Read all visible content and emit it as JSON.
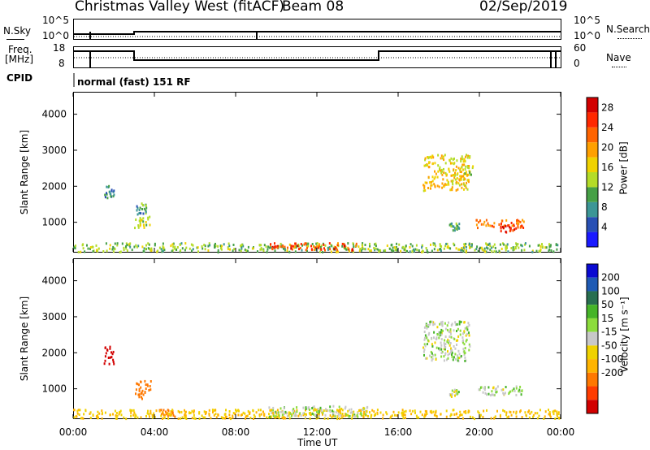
{
  "header": {
    "station": "Christmas Valley West (fitACF)",
    "beam": "Beam 08",
    "date": "02/Sep/2019"
  },
  "summary_panels": {
    "nsky": {
      "label": "N.Sky",
      "ticks": [
        "10^5",
        "10^0"
      ]
    },
    "nsearch": {
      "label": "N.Search",
      "ticks": [
        "10^5",
        "10^0"
      ]
    },
    "freq": {
      "label_line1": "Freq.",
      "label_line2": "[MHz]",
      "ticks": [
        "18",
        "8"
      ]
    },
    "nave": {
      "label": "Nave",
      "ticks": [
        "60",
        "0"
      ]
    },
    "cpid": {
      "label": "CPID",
      "program": "normal (fast) 151 RF"
    }
  },
  "colors": {
    "power_scale": [
      "#1a1aff",
      "#2850b4",
      "#3c9696",
      "#46a046",
      "#b4dc28",
      "#f0d200",
      "#ffa000",
      "#ff6400",
      "#ff2800",
      "#d20000"
    ],
    "velocity_scale": [
      "#0a0ad2",
      "#1e5ab4",
      "#286e50",
      "#46b428",
      "#8cdc3c",
      "#c8c8c8",
      "#f0d200",
      "#ffb400",
      "#ff7800",
      "#ff3c00",
      "#d20000"
    ],
    "ground_scatter": "#c8c8c8"
  },
  "chart_data": [
    {
      "type": "heatmap",
      "parameter": "Power",
      "xlabel": "",
      "ylabel": "Slant Range [km]",
      "x_ticks": [
        "00:00",
        "04:00",
        "08:00",
        "12:00",
        "16:00",
        "20:00",
        "00:00"
      ],
      "x_range_hours": [
        0,
        24
      ],
      "y_ticks": [
        1000,
        2000,
        3000,
        4000
      ],
      "ylim": [
        180,
        4600
      ],
      "colorbar": {
        "label": "Power [dB]",
        "ticks": [
          4,
          8,
          12,
          16,
          20,
          24,
          28
        ],
        "range": [
          0,
          30
        ]
      },
      "echo_regions": [
        {
          "t_start": 3.0,
          "t_end": 3.8,
          "r_start": 850,
          "r_end": 1200,
          "value": 14
        },
        {
          "t_start": 3.1,
          "t_end": 3.6,
          "r_start": 1250,
          "r_end": 1550,
          "value": 9
        },
        {
          "t_start": 1.5,
          "t_end": 2.0,
          "r_start": 1700,
          "r_end": 2100,
          "value": 8
        },
        {
          "t_start": 17.2,
          "t_end": 19.5,
          "r_start": 1900,
          "r_end": 2900,
          "value": 17
        },
        {
          "t_start": 19.0,
          "t_end": 19.7,
          "r_start": 2300,
          "r_end": 2600,
          "value": 15
        },
        {
          "t_start": 18.5,
          "t_end": 19.0,
          "r_start": 800,
          "r_end": 1000,
          "value": 10
        },
        {
          "t_start": 19.8,
          "t_end": 22.2,
          "r_start": 850,
          "r_end": 1100,
          "value": 22
        },
        {
          "t_start": 21.0,
          "t_end": 21.7,
          "r_start": 750,
          "r_end": 950,
          "value": 27
        },
        {
          "t_start": 0.0,
          "t_end": 23.9,
          "r_start": 200,
          "r_end": 450,
          "value": 12
        },
        {
          "t_start": 9.5,
          "t_end": 14.0,
          "r_start": 250,
          "r_end": 450,
          "value": 24
        }
      ]
    },
    {
      "type": "heatmap",
      "parameter": "Velocity",
      "xlabel": "Time UT",
      "ylabel": "Slant Range [km]",
      "x_ticks": [
        "00:00",
        "04:00",
        "08:00",
        "12:00",
        "16:00",
        "20:00",
        "00:00"
      ],
      "x_range_hours": [
        0,
        24
      ],
      "y_ticks": [
        1000,
        2000,
        3000,
        4000
      ],
      "ylim": [
        180,
        4600
      ],
      "colorbar": {
        "label": "Velocity [m s⁻¹]",
        "ticks": [
          200,
          100,
          50,
          15,
          -15,
          -50,
          -100,
          -200
        ]
      },
      "echo_regions": [
        {
          "t_start": 1.5,
          "t_end": 2.0,
          "r_start": 1700,
          "r_end": 2200,
          "value": -200
        },
        {
          "t_start": 3.0,
          "t_end": 3.8,
          "r_start": 750,
          "r_end": 1250,
          "value": -100
        },
        {
          "t_start": 4.2,
          "t_end": 5.0,
          "r_start": 250,
          "r_end": 450,
          "value": -100
        },
        {
          "t_start": 17.2,
          "t_end": 19.5,
          "r_start": 1800,
          "r_end": 2900,
          "value": 0
        },
        {
          "t_start": 19.8,
          "t_end": 22.2,
          "r_start": 850,
          "r_end": 1100,
          "value": 0
        },
        {
          "t_start": 18.5,
          "t_end": 19.0,
          "r_start": 800,
          "r_end": 1000,
          "value": 0
        },
        {
          "t_start": 0.0,
          "t_end": 23.9,
          "r_start": 200,
          "r_end": 450,
          "value": -50
        },
        {
          "t_start": 9.5,
          "t_end": 14.5,
          "r_start": 250,
          "r_end": 550,
          "value": 0
        }
      ]
    }
  ]
}
